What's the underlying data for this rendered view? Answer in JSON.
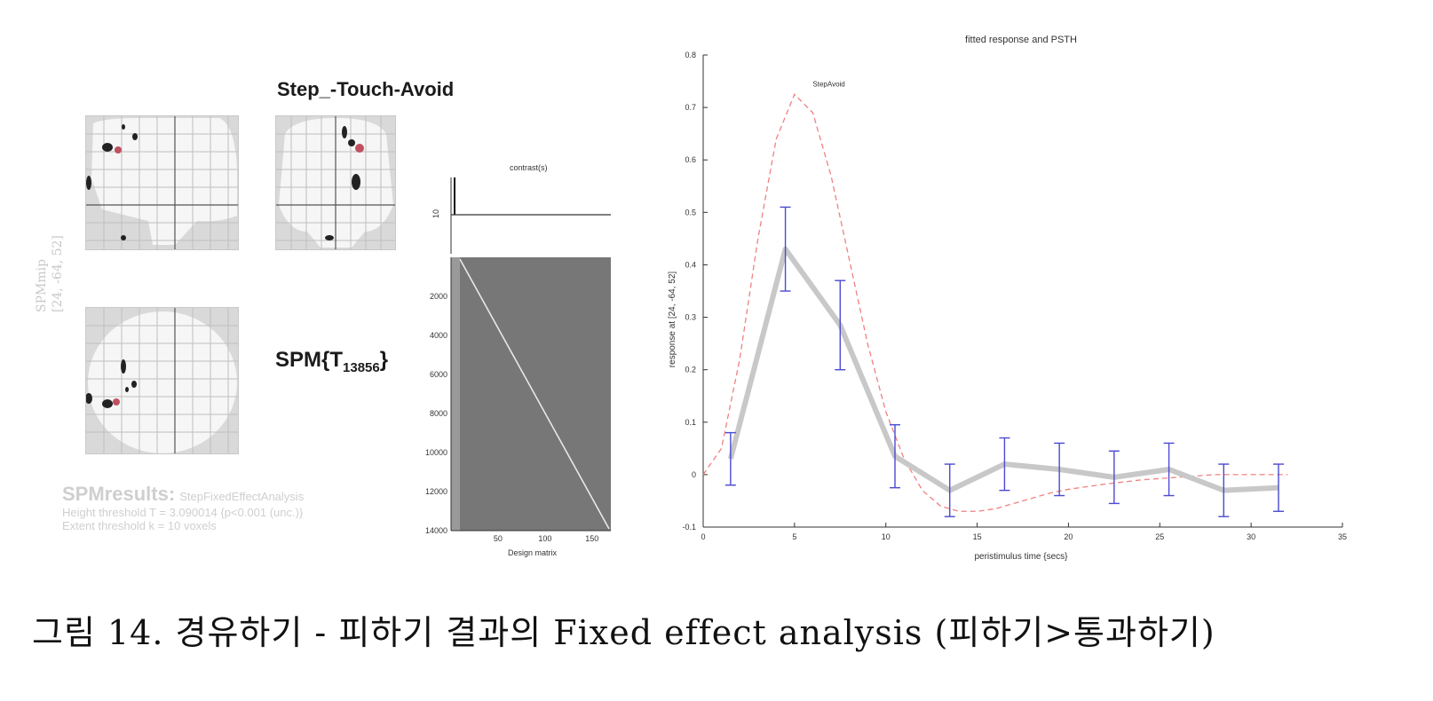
{
  "spm": {
    "title": "Step_-Touch-Avoid",
    "stat_prefix": "SPM{T",
    "stat_subscript": "13856",
    "stat_suffix": "}",
    "side_label_line1": "SPMmip",
    "side_label_line2": "[24, -64, 52]",
    "results_title": "SPMresults:",
    "results_subtitle": "StepFixedEffectAnalysis",
    "height_threshold": "Height threshold T = 3.090014 {p<0.001 (unc.)}",
    "extent_threshold": "Extent threshold k = 10 voxels"
  },
  "design_matrix": {
    "contrast_title": "contrast(s)",
    "contrast_index": "10",
    "xlabel": "Design matrix",
    "y_ticks": [
      "2000",
      "4000",
      "6000",
      "8000",
      "10000",
      "12000",
      "14000"
    ],
    "x_ticks": [
      "50",
      "100",
      "150"
    ]
  },
  "chart_data": {
    "type": "line",
    "title": "fitted response and PSTH",
    "xlabel": "peristimulus time {secs}",
    "ylabel": "response at [24, -64, 52]",
    "xlim": [
      0,
      35
    ],
    "ylim": [
      -0.1,
      0.8
    ],
    "x_ticks": [
      0,
      5,
      10,
      15,
      20,
      25,
      30,
      35
    ],
    "y_ticks": [
      -0.1,
      0,
      0.1,
      0.2,
      0.3,
      0.4,
      0.5,
      0.6,
      0.7,
      0.8
    ],
    "annotation": "StepAvoid",
    "series": [
      {
        "kind": "psth",
        "color": "#c8c8c8",
        "x": [
          1.5,
          4.5,
          7.5,
          10.5,
          13.5,
          16.5,
          19.5,
          22.5,
          25.5,
          28.5,
          31.5
        ],
        "y": [
          0.03,
          0.43,
          0.285,
          0.035,
          -0.03,
          0.02,
          0.01,
          -0.005,
          0.01,
          -0.03,
          -0.025
        ],
        "err": [
          0.05,
          0.08,
          0.085,
          0.06,
          0.05,
          0.05,
          0.05,
          0.05,
          0.05,
          0.05,
          0.045
        ]
      },
      {
        "kind": "fitted",
        "color": "#f08080",
        "x": [
          0,
          1,
          2,
          3,
          4,
          5,
          6,
          7,
          8,
          9,
          10,
          11,
          12,
          13,
          14,
          15,
          16,
          17,
          18,
          19,
          20,
          22,
          24,
          26,
          28,
          30,
          32
        ],
        "y": [
          0,
          0.05,
          0.22,
          0.45,
          0.64,
          0.725,
          0.69,
          0.57,
          0.41,
          0.25,
          0.12,
          0.03,
          -0.03,
          -0.06,
          -0.07,
          -0.07,
          -0.065,
          -0.055,
          -0.045,
          -0.035,
          -0.028,
          -0.018,
          -0.01,
          -0.005,
          0,
          0,
          0
        ]
      }
    ],
    "error_bar_color": "#4a4ad0"
  },
  "caption": "그림 14. 경유하기 - 피하기 결과의 Fixed effect analysis (피하기>통과하기)"
}
